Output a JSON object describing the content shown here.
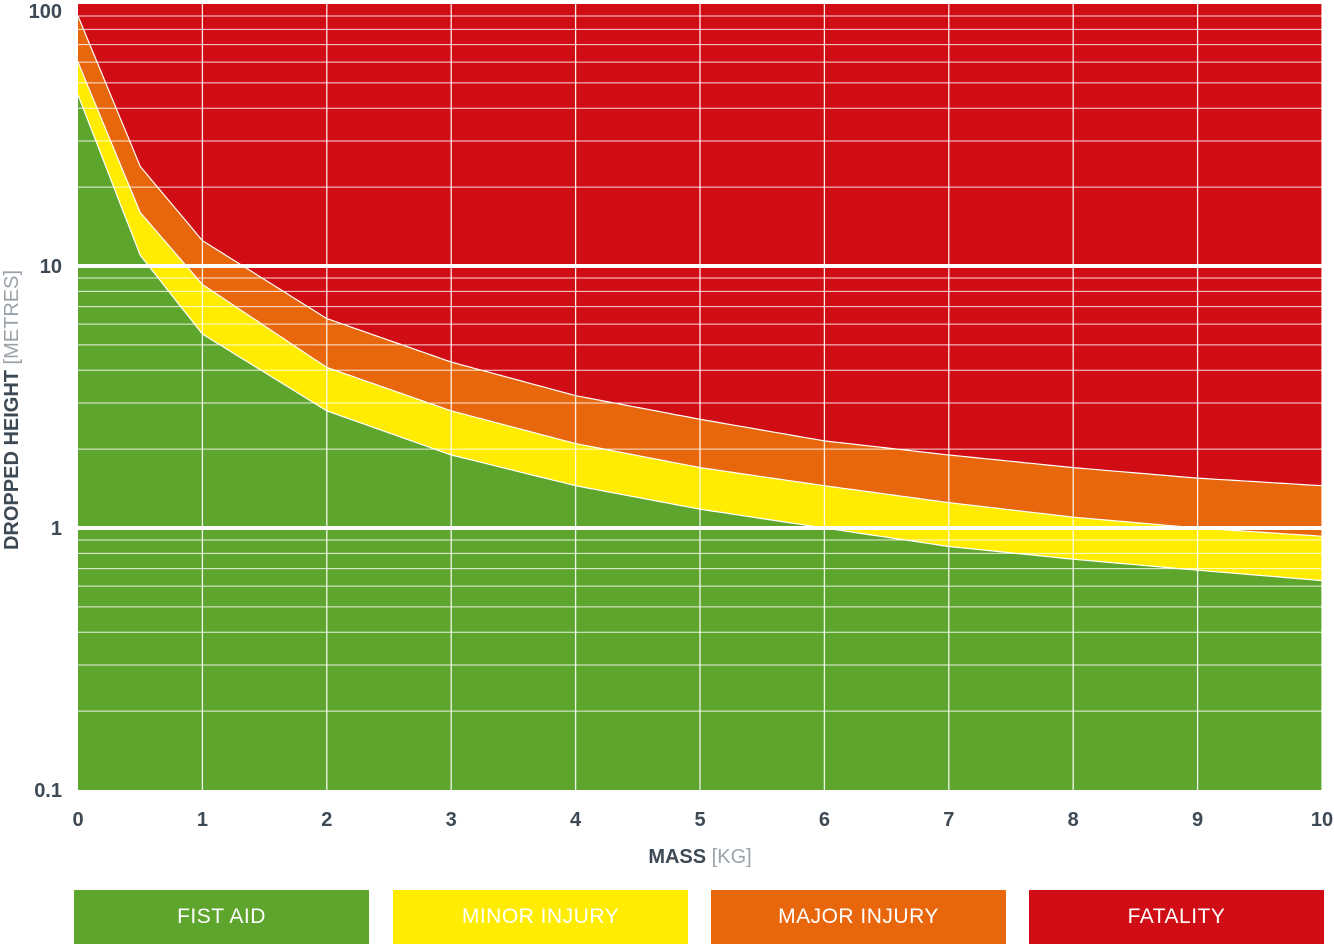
{
  "chart_data": {
    "type": "area",
    "xlabel": "MASS",
    "xlabel_unit": "[KG]",
    "ylabel": "DROPPED HEIGHT",
    "ylabel_unit": "[METRES]",
    "xlim": [
      0,
      10
    ],
    "ylim": [
      0.1,
      100
    ],
    "yscale": "log",
    "grid": true,
    "x_ticks": [
      0,
      1,
      2,
      3,
      4,
      5,
      6,
      7,
      8,
      9,
      10
    ],
    "y_ticks": [
      0.1,
      1,
      10,
      100
    ],
    "x_tick_labels": [
      "0",
      "1",
      "2",
      "3",
      "4",
      "5",
      "6",
      "7",
      "8",
      "9",
      "10"
    ],
    "y_tick_labels": [
      "0.1",
      "1",
      "10",
      "100"
    ],
    "legend_position": "bottom",
    "series": [
      {
        "name": "FIST AID",
        "color": "#5ea52e",
        "x": [
          0.0,
          0.5,
          1,
          2,
          3,
          4,
          5,
          6,
          7,
          8,
          9,
          10
        ],
        "y": [
          45,
          11,
          5.5,
          2.8,
          1.9,
          1.45,
          1.18,
          1.0,
          0.85,
          0.76,
          0.69,
          0.63
        ]
      },
      {
        "name": "MINOR INJURY",
        "color": "#ffec00",
        "x": [
          0.0,
          0.5,
          1,
          2,
          3,
          4,
          5,
          6,
          7,
          8,
          9,
          10
        ],
        "y": [
          60,
          16,
          8.5,
          4.1,
          2.8,
          2.1,
          1.7,
          1.45,
          1.25,
          1.1,
          1.0,
          0.93
        ]
      },
      {
        "name": "MAJOR INJURY",
        "color": "#e8670c",
        "x": [
          0.0,
          0.5,
          1,
          2,
          3,
          4,
          5,
          6,
          7,
          8,
          9,
          10
        ],
        "y": [
          90,
          24,
          12.5,
          6.3,
          4.3,
          3.2,
          2.6,
          2.15,
          1.9,
          1.7,
          1.55,
          1.45
        ]
      },
      {
        "name": "FATALITY",
        "color": "#d00c14"
      }
    ]
  }
}
